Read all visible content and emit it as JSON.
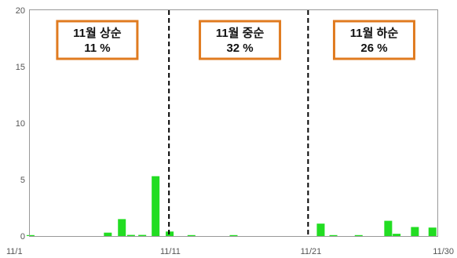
{
  "chart_data": {
    "type": "bar",
    "title": "",
    "xlabel": "",
    "ylabel": "",
    "ylim": [
      0,
      20
    ],
    "yticks": [
      0,
      5,
      10,
      15,
      20
    ],
    "xlim": [
      1,
      30
    ],
    "xtick_labels": [
      {
        "day": 1,
        "label": "11/1"
      },
      {
        "day": 11,
        "label": "11/11"
      },
      {
        "day": 21,
        "label": "11/21"
      },
      {
        "day": 30,
        "label": "11/30"
      }
    ],
    "grid": false,
    "legend": "none",
    "bar_color": "#22dd22",
    "bars": [
      {
        "x": 1.05,
        "value": 0.05
      },
      {
        "x": 6.55,
        "value": 0.3
      },
      {
        "x": 7.55,
        "value": 1.5
      },
      {
        "x": 8.2,
        "value": 0.1
      },
      {
        "x": 9.0,
        "value": 0.1
      },
      {
        "x": 9.95,
        "value": 5.3
      },
      {
        "x": 10.95,
        "value": 0.4
      },
      {
        "x": 12.5,
        "value": 0.05
      },
      {
        "x": 15.5,
        "value": 0.05
      },
      {
        "x": 21.7,
        "value": 1.1
      },
      {
        "x": 22.6,
        "value": 0.05
      },
      {
        "x": 24.4,
        "value": 0.05
      },
      {
        "x": 26.5,
        "value": 1.35
      },
      {
        "x": 27.1,
        "value": 0.2
      },
      {
        "x": 28.4,
        "value": 0.8
      },
      {
        "x": 29.65,
        "value": 0.75
      }
    ],
    "dividers": [
      10.9,
      20.8
    ],
    "annotations": [
      {
        "title": "11월 상순",
        "value": "11 %",
        "center_x": 5.8
      },
      {
        "title": "11월 중순",
        "value": "32 %",
        "center_x": 15.95
      },
      {
        "title": "11월 하순",
        "value": "26 %",
        "center_x": 25.5
      }
    ],
    "annotation_border_color": "#e07b20"
  }
}
